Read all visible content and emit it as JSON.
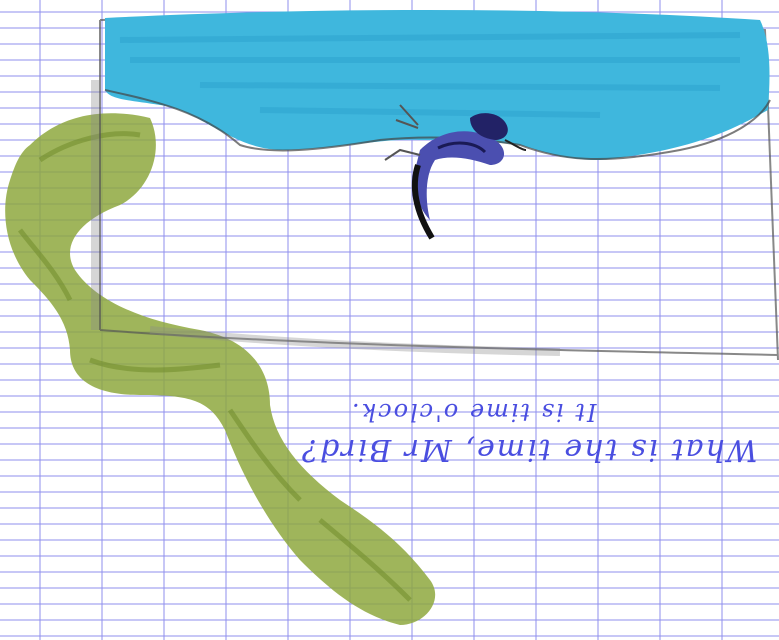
{
  "image": {
    "type": "child drawing on squared notebook paper",
    "paper_color": "#ffffff",
    "grid_color": "#5a5ae8",
    "colors": {
      "water": "#3fb7dd",
      "water_dark": "#29a3cf",
      "grass": "#8ea83e",
      "pencil": "#333333",
      "bird": "#4b4fb0",
      "ink": "#4a4ee0"
    }
  },
  "handwriting": {
    "line1": "What is the time, Mr Bird?",
    "line2": "It is time o'clock."
  }
}
